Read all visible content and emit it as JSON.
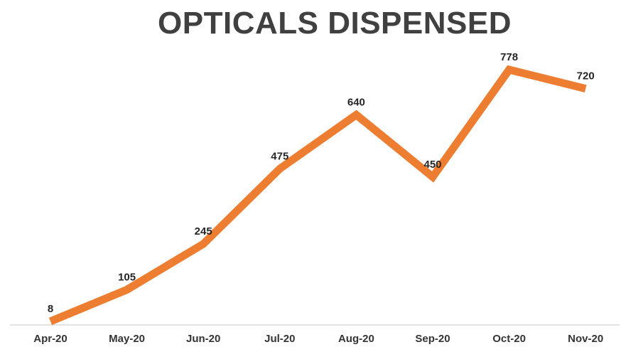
{
  "chart_data": {
    "type": "line",
    "title": "OPTICALS DISPENSED",
    "xlabel": "",
    "ylabel": "",
    "categories": [
      "Apr-20",
      "May-20",
      "Jun-20",
      "Jul-20",
      "Aug-20",
      "Sep-20",
      "Oct-20",
      "Nov-20"
    ],
    "series": [
      {
        "values": [
          8,
          105,
          245,
          475,
          640,
          450,
          778,
          720
        ],
        "color": "#ED7D31"
      }
    ],
    "ylim": [
      0,
      800
    ],
    "grid": false,
    "legend": "none",
    "data_labels": true
  }
}
